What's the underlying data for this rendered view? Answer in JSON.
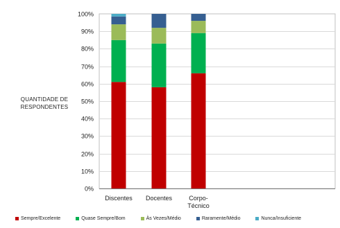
{
  "chart_data": {
    "type": "bar",
    "stacked": true,
    "categories": [
      "Discentes",
      "Docentes",
      "Corpo-Técnico"
    ],
    "category_lines": [
      [
        "Discentes"
      ],
      [
        "Docentes"
      ],
      [
        "Corpo-",
        "Técnico"
      ]
    ],
    "ylabel_lines": [
      "QUANTIDADE DE",
      "RESPONDENTES"
    ],
    "ylim": [
      0,
      100
    ],
    "yticks": [
      "0%",
      "10%",
      "20%",
      "30%",
      "40%",
      "50%",
      "60%",
      "70%",
      "80%",
      "90%",
      "100%"
    ],
    "grid": true,
    "legend_position": "bottom",
    "series": [
      {
        "name": "Sempre/Excelente",
        "color": "#c00000",
        "values": [
          61,
          58,
          66
        ]
      },
      {
        "name": "Quase Sempre/Bom",
        "color": "#00b050",
        "values": [
          24,
          25,
          23
        ]
      },
      {
        "name": "Às Vezes/Médio",
        "color": "#9bbb59",
        "values": [
          9,
          9,
          7
        ]
      },
      {
        "name": "Raramente/Médio",
        "color": "#365f91",
        "values": [
          4.5,
          8,
          4
        ]
      },
      {
        "name": "Nunca/Insuficiente",
        "color": "#4bacc6",
        "values": [
          1.5,
          0,
          0
        ]
      }
    ]
  }
}
